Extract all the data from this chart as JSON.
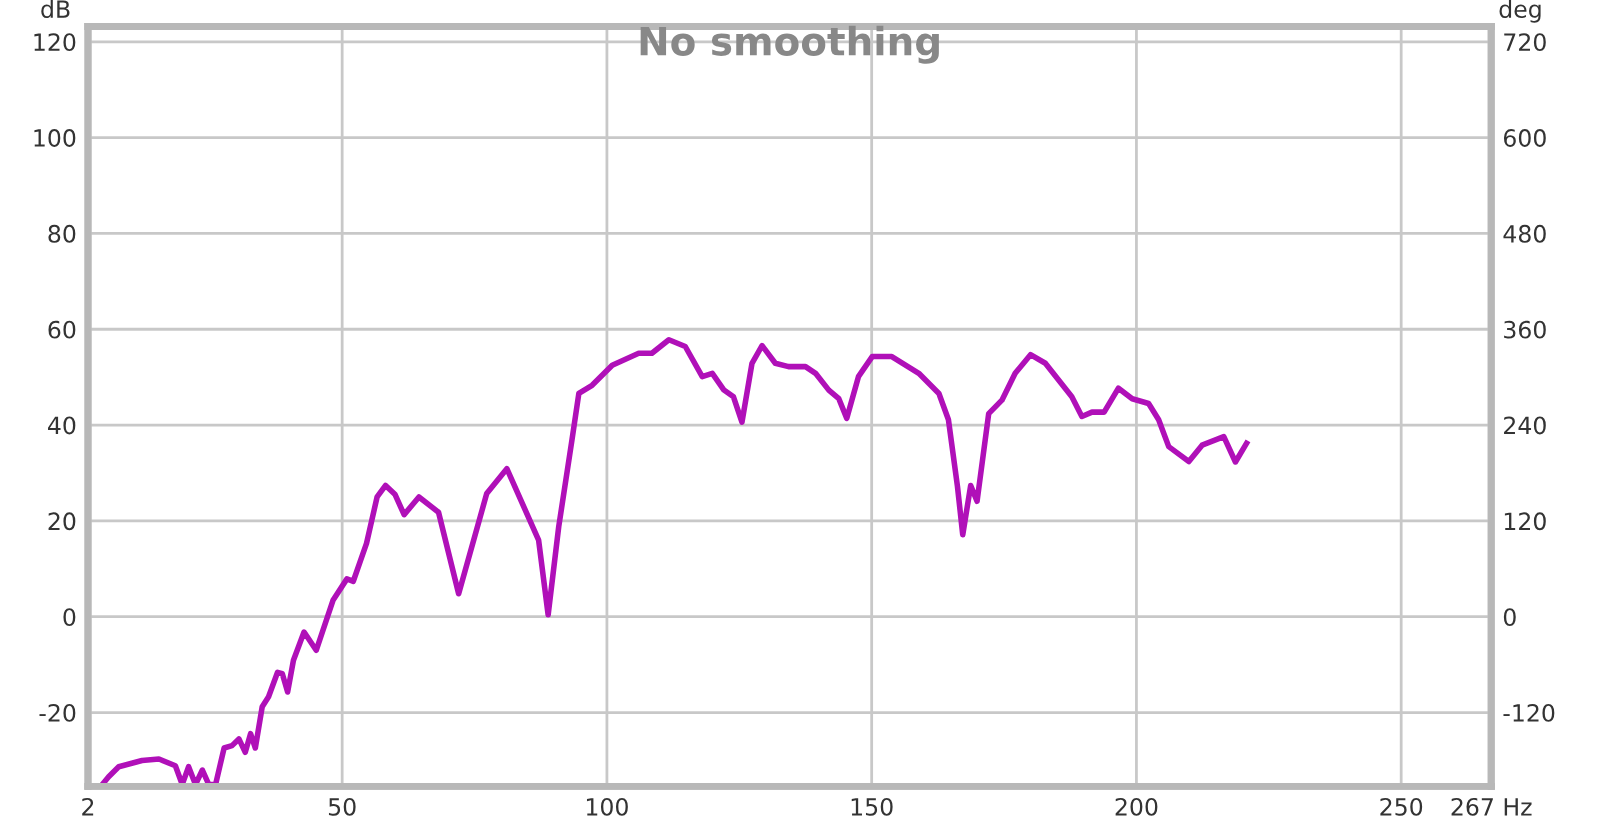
{
  "chart_data": {
    "type": "line",
    "title": "No smoothing",
    "ylabel": "dB",
    "y2label": "deg",
    "series": [
      {
        "color": "#b010b8",
        "x": [
          4.7,
          5.9,
          7.8,
          12.2,
          15.4,
          18.5,
          19.8,
          21,
          22.3,
          23.6,
          24.8,
          26.1,
          27.7,
          29.2,
          30.5,
          31.7,
          32.7,
          33.6,
          34.9,
          36.1,
          37.8,
          38.7,
          39.7,
          40.8,
          42.8,
          45.1,
          48.3,
          50.9,
          52.1,
          54.6,
          56.6,
          58.2,
          60,
          61.7,
          64.5,
          68.2,
          72,
          77.3,
          81.1,
          87.1,
          88.9,
          90.9,
          93.4,
          94.7,
          97.2,
          101,
          106,
          108.5,
          111.7,
          114.8,
          118,
          119.9,
          122.1,
          123.9,
          125.5,
          127.4,
          129.3,
          131.8,
          134.3,
          137.5,
          139.4,
          141.9,
          143.8,
          145.3,
          147.5,
          150.1,
          153.8,
          158.9,
          162.7,
          164.5,
          166.2,
          167.2,
          168.7,
          169.9,
          172.1,
          174.6,
          177.1,
          180,
          182.8,
          187.8,
          189.7,
          191.6,
          193.9,
          196.6,
          199.2,
          202.3,
          204.2,
          206.1,
          209.9,
          212.4,
          216.5,
          218.7,
          220.8
        ],
        "values": [
          -35,
          -33.4,
          -31.3,
          -30,
          -29.7,
          -31.1,
          -35,
          -31.3,
          -35,
          -32,
          -35,
          -35,
          -27.4,
          -26.9,
          -25.5,
          -28.3,
          -24.4,
          -27.4,
          -18.8,
          -16.7,
          -11.6,
          -11.9,
          -15.7,
          -9.1,
          -3.2,
          -7,
          3.5,
          7.9,
          7.4,
          15.3,
          25,
          27.4,
          25.5,
          21.3,
          25,
          21.8,
          4.8,
          25.7,
          30.9,
          16,
          0.4,
          18.8,
          36.9,
          46.6,
          48.3,
          52.5,
          55,
          55,
          57.8,
          56.4,
          50.1,
          50.8,
          47.3,
          45.9,
          40.6,
          52.9,
          56.6,
          52.9,
          52.2,
          52.2,
          50.8,
          47.3,
          45.5,
          41.4,
          50.1,
          54.3,
          54.3,
          50.8,
          46.6,
          41.1,
          27.2,
          17.1,
          27.4,
          24.1,
          42.4,
          45.2,
          50.8,
          54.7,
          52.9,
          45.9,
          41.8,
          42.7,
          42.7,
          47.7,
          45.5,
          44.5,
          41.1,
          35.5,
          32.4,
          35.8,
          37.6,
          32.3,
          36.2
        ]
      }
    ],
    "xlim": [
      2,
      267
    ],
    "xticks": [
      2,
      50,
      100,
      150,
      200,
      250,
      {
        "value": 267,
        "label": "267 Hz"
      }
    ],
    "ylim": [
      -35.4,
      123.2
    ],
    "yticks": [
      -20,
      0,
      20,
      40,
      60,
      80,
      100,
      120
    ],
    "y2lim": [
      -212.4,
      739.2
    ],
    "y2ticks": [
      -120,
      0,
      120,
      240,
      360,
      480,
      600,
      720
    ],
    "grid": true,
    "line_style": "solid",
    "marker": "none"
  }
}
